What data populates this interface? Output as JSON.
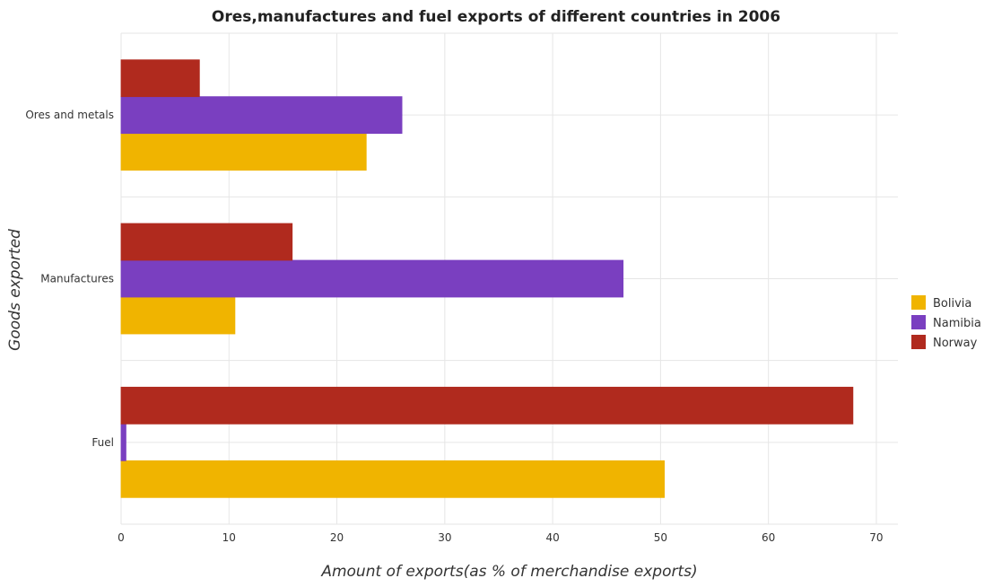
{
  "colors": {
    "Bolivia": "#f0b400",
    "Namibia": "#7a3fc0",
    "Norway": "#b02a1e"
  },
  "chart_data": {
    "type": "bar",
    "orientation": "horizontal",
    "title": "Ores,manufactures and fuel exports of different countries in 2006",
    "xlabel": "Amount of exports(as % of merchandise exports)",
    "ylabel": "Goods exported",
    "xlim": [
      0,
      72
    ],
    "xticks": [
      0,
      10,
      20,
      30,
      40,
      50,
      60,
      70
    ],
    "grid": true,
    "legend_position": "right",
    "categories": [
      "Ores and metals",
      "Manufactures",
      "Fuel"
    ],
    "series": [
      {
        "name": "Bolivia",
        "values": [
          22.72,
          10.55,
          50.35
        ]
      },
      {
        "name": "Namibia",
        "values": [
          26.03,
          46.53,
          0.45
        ]
      },
      {
        "name": "Norway",
        "values": [
          7.26,
          15.86,
          67.83
        ]
      }
    ]
  }
}
